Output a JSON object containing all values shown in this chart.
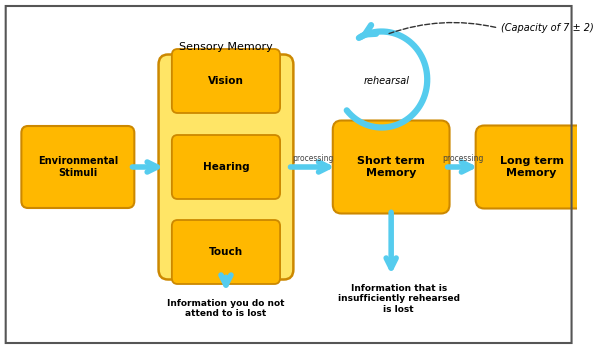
{
  "fig_width": 6.08,
  "fig_height": 3.49,
  "dpi": 100,
  "bg_color": "#ffffff",
  "border_color": "#555555",
  "box_fill": "#FFB800",
  "box_edge": "#CC8800",
  "sensory_bg_fill": "#FFE566",
  "sensory_bg_edge": "#CC8800",
  "arrow_color": "#55CCEE",
  "text_color": "#000000",
  "sensory_label": "Sensory Memory",
  "env_label": "Environmental\nStimuli",
  "vision_label": "Vision",
  "hearing_label": "Hearing",
  "touch_label": "Touch",
  "short_label": "Short term\nMemory",
  "long_label": "Long term\nMemory",
  "capacity_label": "(Capacity of 7 ± 2)",
  "rehearsal_label": "rehearsal",
  "processing1_label": "processing",
  "processing2_label": "processing",
  "lost1_label": "Information you do not\nattend to is lost",
  "lost2_label": "Information that is\ninsufficiently rehearsed\nis lost"
}
